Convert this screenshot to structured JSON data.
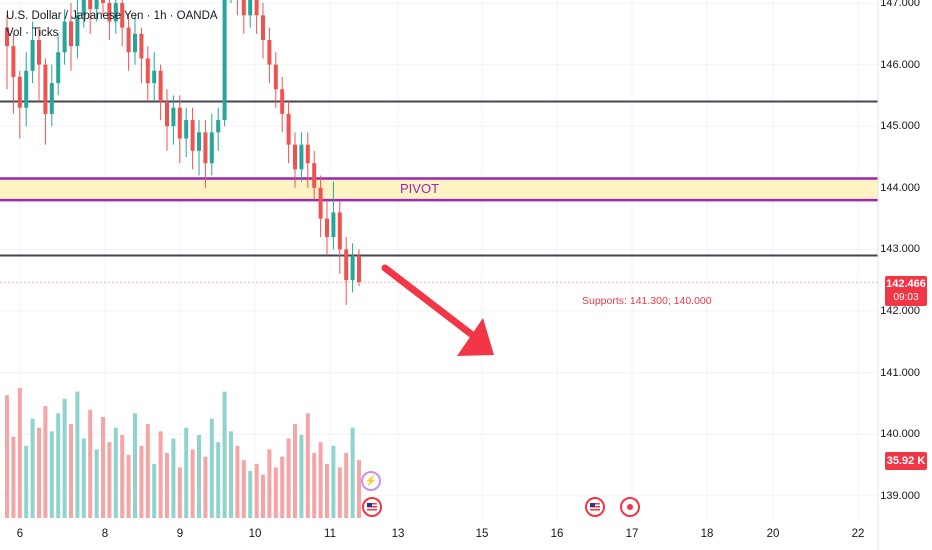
{
  "legend": {
    "symbol": "U.S. Dollar / Japanese Yen · 1h · OANDA",
    "indicator": "Vol · Ticks"
  },
  "annotations": {
    "pivot_label": "PIVOT",
    "supports_label": "Supports: 141.300; 140.000"
  },
  "price_axis": {
    "labels": [
      "147.000",
      "146.000",
      "145.000",
      "144.000",
      "143.000",
      "142.000",
      "141.000",
      "140.000",
      "139.000"
    ],
    "last_price": "142.466",
    "countdown": "09:03",
    "volume_value": "35.92 K"
  },
  "time_axis": {
    "labels": [
      "6",
      "8",
      "9",
      "10",
      "11",
      "13",
      "15",
      "16",
      "17",
      "18",
      "20",
      "22"
    ]
  },
  "colors": {
    "up": "#26a69a",
    "down": "#ef5350",
    "vol_up": "#8ed3cd",
    "vol_down": "#f5a5a5",
    "pivot_line": "#9c27b0",
    "pivot_fill": "#fff3c4",
    "level_line": "#434651",
    "arrow": "#f23645",
    "support_text": "#f23645"
  },
  "events": [
    {
      "icon": "lightning-icon"
    },
    {
      "icon": "us-flag-icon"
    },
    {
      "icon": "us-flag-icon"
    },
    {
      "icon": "event-dot-icon"
    }
  ],
  "chart_data": {
    "type": "candlestick",
    "symbol": "USD/JPY",
    "timeframe": "1h",
    "price_range": [
      138.75,
      147.05
    ],
    "levels": {
      "horizontal_lines": [
        145.4,
        142.9
      ],
      "pivot_zone": [
        143.8,
        144.15
      ],
      "last_price": 142.466,
      "supports": [
        141.3,
        140.0
      ]
    },
    "candles": [
      [
        146.6,
        146.3,
        146.8,
        145.6
      ],
      [
        146.3,
        145.8,
        146.5,
        145.2
      ],
      [
        145.8,
        145.3,
        145.9,
        144.8
      ],
      [
        145.3,
        145.9,
        146.2,
        145.0
      ],
      [
        145.9,
        146.4,
        146.7,
        145.7
      ],
      [
        146.4,
        146.0,
        146.6,
        145.4
      ],
      [
        146.0,
        145.2,
        146.1,
        144.7
      ],
      [
        145.2,
        145.7,
        146.0,
        145.0
      ],
      [
        145.7,
        146.2,
        146.5,
        145.5
      ],
      [
        146.2,
        146.7,
        146.9,
        146.0
      ],
      [
        146.7,
        146.3,
        147.0,
        145.9
      ],
      [
        146.3,
        146.8,
        147.1,
        146.1
      ],
      [
        146.8,
        147.2,
        147.4,
        146.6
      ],
      [
        147.2,
        146.9,
        147.5,
        146.5
      ],
      [
        146.9,
        147.3,
        147.5,
        146.7
      ],
      [
        147.3,
        147.0,
        147.5,
        146.8
      ],
      [
        147.0,
        146.7,
        147.2,
        146.4
      ],
      [
        146.7,
        147.0,
        147.3,
        146.5
      ],
      [
        147.0,
        146.6,
        147.2,
        146.3
      ],
      [
        146.6,
        146.2,
        146.8,
        145.9
      ],
      [
        146.2,
        146.5,
        146.8,
        146.0
      ],
      [
        146.5,
        146.1,
        146.6,
        145.7
      ],
      [
        146.1,
        145.7,
        146.3,
        145.4
      ],
      [
        145.7,
        145.9,
        146.2,
        145.4
      ],
      [
        145.9,
        145.4,
        146.0,
        145.1
      ],
      [
        145.4,
        145.0,
        145.6,
        144.6
      ],
      [
        145.0,
        145.3,
        145.5,
        144.7
      ],
      [
        145.3,
        144.8,
        145.5,
        144.4
      ],
      [
        144.8,
        145.1,
        145.3,
        144.5
      ],
      [
        145.1,
        144.6,
        145.3,
        144.3
      ],
      [
        144.6,
        144.9,
        145.1,
        144.2
      ],
      [
        144.9,
        144.4,
        145.1,
        144.0
      ],
      [
        144.4,
        144.9,
        145.2,
        144.2
      ],
      [
        144.9,
        145.1,
        145.3,
        144.6
      ],
      [
        145.1,
        147.4,
        147.6,
        145.0
      ],
      [
        147.4,
        147.5,
        147.8,
        147.0
      ],
      [
        147.5,
        147.1,
        147.7,
        146.8
      ],
      [
        147.1,
        146.8,
        147.3,
        146.5
      ],
      [
        146.8,
        147.2,
        147.5,
        146.6
      ],
      [
        147.2,
        146.8,
        147.4,
        146.5
      ],
      [
        146.8,
        146.4,
        147.0,
        146.1
      ],
      [
        146.4,
        146.0,
        146.6,
        145.7
      ],
      [
        146.0,
        145.6,
        146.2,
        145.3
      ],
      [
        145.6,
        145.2,
        145.8,
        144.9
      ],
      [
        145.2,
        144.7,
        145.4,
        144.4
      ],
      [
        144.7,
        144.3,
        144.9,
        144.0
      ],
      [
        144.3,
        144.7,
        144.9,
        144.1
      ],
      [
        144.7,
        144.4,
        144.9,
        144.0
      ],
      [
        144.4,
        144.0,
        144.6,
        143.8
      ],
      [
        144.0,
        143.5,
        144.2,
        143.2
      ],
      [
        143.5,
        143.2,
        143.8,
        142.9
      ],
      [
        143.2,
        143.6,
        144.1,
        143.0
      ],
      [
        143.6,
        143.0,
        143.8,
        142.6
      ],
      [
        143.0,
        142.5,
        143.2,
        142.1
      ],
      [
        142.5,
        142.9,
        143.1,
        142.3
      ],
      [
        142.9,
        142.47,
        143.0,
        142.4
      ]
    ],
    "volume": [
      68,
      45,
      72,
      40,
      55,
      50,
      62,
      48,
      58,
      66,
      52,
      70,
      44,
      60,
      38,
      56,
      42,
      50,
      46,
      35,
      58,
      40,
      52,
      30,
      48,
      36,
      44,
      28,
      50,
      38,
      46,
      34,
      55,
      42,
      70,
      48,
      40,
      32,
      26,
      30,
      24,
      38,
      28,
      34,
      44,
      52,
      46,
      58,
      36,
      42,
      30,
      40,
      28,
      36,
      50,
      32
    ]
  }
}
